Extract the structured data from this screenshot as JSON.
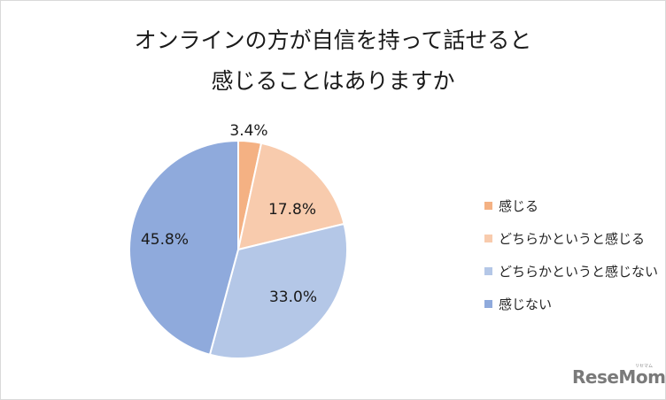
{
  "chart_data": {
    "type": "pie",
    "title": "オンラインの方が自信を持って話せると感じることはありますか",
    "title_lines": [
      "オンラインの方が自信を持って話せると",
      "感じることはありますか"
    ],
    "categories": [
      "感じる",
      "どちらかというと感じる",
      "どちらかというと感じない",
      "感じない"
    ],
    "values": [
      3.4,
      17.8,
      33.0,
      45.8
    ],
    "value_labels": [
      "3.4%",
      "17.8%",
      "33.0%",
      "45.8%"
    ],
    "colors": [
      "#f4b183",
      "#f8cbad",
      "#b4c7e7",
      "#8faadc"
    ],
    "start_angle": "12 o'clock",
    "direction": "clockwise",
    "legend_position": "right"
  },
  "legend": {
    "items": [
      {
        "label": "感じる",
        "color": "#f4b183"
      },
      {
        "label": "どちらかというと感じる",
        "color": "#f8cbad"
      },
      {
        "label": "どちらかというと感じない",
        "color": "#b4c7e7"
      },
      {
        "label": "感じない",
        "color": "#8faadc"
      }
    ]
  },
  "watermark": {
    "text": "ReseMom",
    "subtext": "リセマム"
  }
}
